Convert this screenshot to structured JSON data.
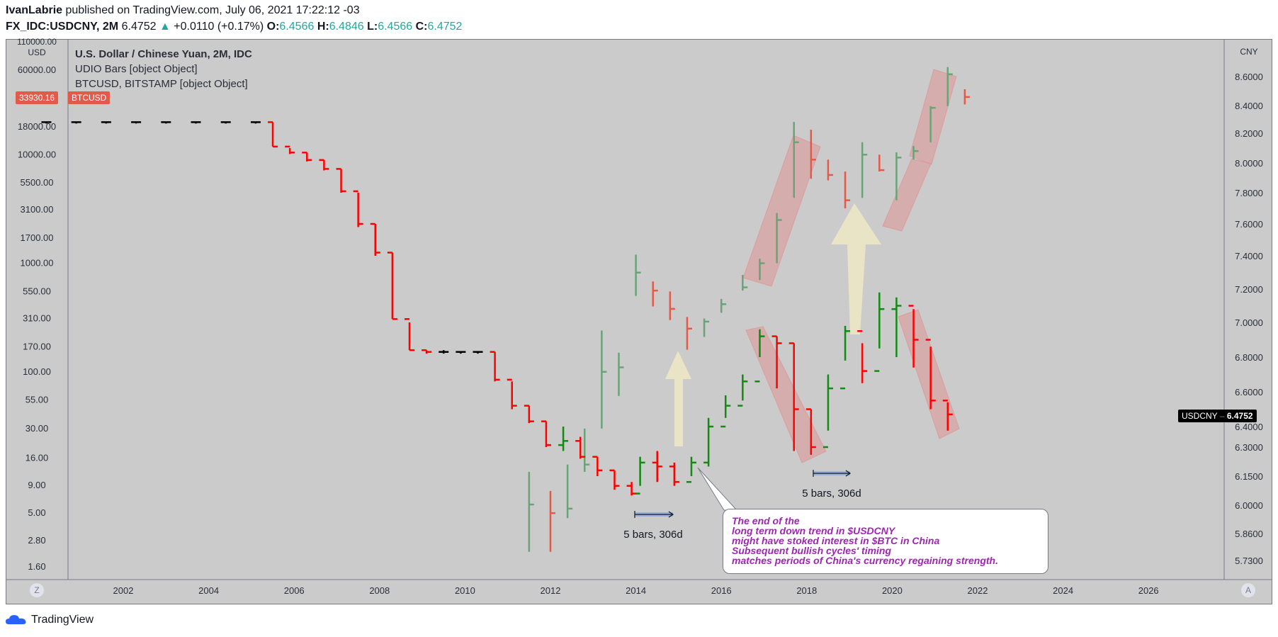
{
  "header": {
    "author": "IvanLabrie",
    "published": "published on TradingView.com, July 06, 2021 17:22:12 -03"
  },
  "ohlc": {
    "symbol": "FX_IDC:USDCNY, 2M",
    "last": "6.4752",
    "change": "+0.0110 (+0.17%)",
    "o_label": "O:",
    "o": "6.4566",
    "h_label": "H:",
    "h": "6.4846",
    "l_label": "L:",
    "l": "6.4566",
    "c_label": "C:",
    "c": "6.4752"
  },
  "legend": {
    "title": "U.S. Dollar / Chinese Yuan, 2M, IDC",
    "line1": "UDIO Bars [object Object]",
    "line2": "BTCUSD, BITSTAMP [object Object]"
  },
  "badges": {
    "btc_price": "33930.16",
    "btc_symbol": "BTCUSD",
    "usdcny_symbol": "USDCNY",
    "usdcny_price": "6.4752"
  },
  "colors": {
    "bg": "#cbcbcb",
    "bull": "#138a13",
    "bear": "#ff0000",
    "neutral": "#000000",
    "btc_bull": "#6aa378",
    "btc_bear": "#e25a4a",
    "channel": "#e58a8a",
    "arrow": "#efe9c6",
    "callout_text": "#9c27b0"
  },
  "annotations": {
    "range1": "5 bars, 306d",
    "range2": "5 bars, 306d",
    "callout_lines": [
      "The end of the",
      "long term down trend in $USDCNY",
      "might have stoked interest in $BTC in China",
      "Subsequent bullish cycles' timing",
      "matches periods of China's currency regaining strength."
    ]
  },
  "footer": {
    "brand": "TradingView",
    "z_button": "Z",
    "a_button": "A"
  },
  "chart_data": {
    "type": "bar",
    "left_axis": {
      "unit": "USD",
      "scale": "log",
      "ticks": [
        "110000.00",
        "60000.00",
        "18000.00",
        "10000.00",
        "5500.00",
        "3100.00",
        "1700.00",
        "1000.00",
        "550.00",
        "310.00",
        "170.00",
        "100.00",
        "55.00",
        "30.00",
        "16.00",
        "9.00",
        "5.00",
        "2.80",
        "1.60"
      ]
    },
    "right_axis": {
      "unit": "CNY",
      "ticks": [
        "8.6000",
        "8.4000",
        "8.2000",
        "8.0000",
        "7.8000",
        "7.6000",
        "7.4000",
        "7.2000",
        "7.0000",
        "6.8000",
        "6.6000",
        "6.4000",
        "6.3000",
        "6.1500",
        "6.0000",
        "5.8600",
        "5.7300"
      ]
    },
    "x_axis": {
      "ticks": [
        "2002",
        "2004",
        "2006",
        "2008",
        "2010",
        "2012",
        "2014",
        "2016",
        "2018",
        "2020",
        "2022",
        "2024",
        "2026"
      ]
    },
    "series": [
      {
        "name": "USDCNY",
        "note": "2M bars, values approximated: [year, high, low, close]",
        "bars": [
          [
            2000.2,
            8.28,
            8.27,
            8.28
          ],
          [
            2000.9,
            8.28,
            8.27,
            8.28
          ],
          [
            2001.6,
            8.28,
            8.27,
            8.28
          ],
          [
            2002.3,
            8.28,
            8.27,
            8.28
          ],
          [
            2003.0,
            8.28,
            8.27,
            8.28
          ],
          [
            2003.7,
            8.28,
            8.27,
            8.28
          ],
          [
            2004.4,
            8.28,
            8.27,
            8.28
          ],
          [
            2005.1,
            8.28,
            8.27,
            8.28
          ],
          [
            2005.5,
            8.28,
            8.11,
            8.11
          ],
          [
            2005.9,
            8.1,
            8.06,
            8.07
          ],
          [
            2006.3,
            8.07,
            8.01,
            8.02
          ],
          [
            2006.7,
            8.02,
            7.95,
            7.96
          ],
          [
            2007.1,
            7.96,
            7.8,
            7.81
          ],
          [
            2007.5,
            7.8,
            7.58,
            7.6
          ],
          [
            2007.9,
            7.6,
            7.4,
            7.42
          ],
          [
            2008.3,
            7.42,
            7.02,
            7.02
          ],
          [
            2008.7,
            7.0,
            6.84,
            6.84
          ],
          [
            2009.1,
            6.84,
            6.82,
            6.83
          ],
          [
            2009.5,
            6.84,
            6.82,
            6.83
          ],
          [
            2009.9,
            6.83,
            6.82,
            6.83
          ],
          [
            2010.3,
            6.83,
            6.82,
            6.83
          ],
          [
            2010.7,
            6.83,
            6.66,
            6.67
          ],
          [
            2011.1,
            6.66,
            6.5,
            6.52
          ],
          [
            2011.5,
            6.52,
            6.42,
            6.43
          ],
          [
            2011.9,
            6.43,
            6.3,
            6.31
          ],
          [
            2012.3,
            6.4,
            6.28,
            6.33
          ],
          [
            2012.7,
            6.35,
            6.24,
            6.25
          ],
          [
            2013.1,
            6.25,
            6.15,
            6.18
          ],
          [
            2013.5,
            6.18,
            6.08,
            6.1
          ],
          [
            2013.9,
            6.12,
            6.05,
            6.06
          ],
          [
            2014.1,
            6.25,
            6.1,
            6.22
          ],
          [
            2014.5,
            6.28,
            6.12,
            6.2
          ],
          [
            2014.9,
            6.22,
            6.1,
            6.12
          ],
          [
            2015.3,
            6.25,
            6.15,
            6.22
          ],
          [
            2015.7,
            6.45,
            6.2,
            6.4
          ],
          [
            2016.1,
            6.58,
            6.45,
            6.52
          ],
          [
            2016.5,
            6.7,
            6.55,
            6.66
          ],
          [
            2016.9,
            6.96,
            6.8,
            6.92
          ],
          [
            2017.3,
            6.92,
            6.62,
            6.88
          ],
          [
            2017.7,
            6.88,
            6.28,
            6.5
          ],
          [
            2018.1,
            6.5,
            6.26,
            6.3
          ],
          [
            2018.5,
            6.7,
            6.38,
            6.62
          ],
          [
            2018.9,
            6.98,
            6.78,
            6.95
          ],
          [
            2019.3,
            6.88,
            6.65,
            6.72
          ],
          [
            2019.7,
            7.18,
            6.85,
            7.08
          ],
          [
            2020.1,
            7.15,
            6.8,
            7.1
          ],
          [
            2020.5,
            7.08,
            6.74,
            6.9
          ],
          [
            2020.9,
            6.86,
            6.5,
            6.55
          ],
          [
            2021.3,
            6.54,
            6.38,
            6.47
          ]
        ]
      },
      {
        "name": "BTCUSD",
        "note": "2M bars, values approximated: [year, high, low, close] in USD",
        "bars": [
          [
            2011.5,
            12,
            2.2,
            6
          ],
          [
            2012.0,
            8,
            2.2,
            5
          ],
          [
            2012.4,
            14,
            4.5,
            5.5
          ],
          [
            2012.8,
            30,
            12,
            14
          ],
          [
            2013.2,
            240,
            30,
            100
          ],
          [
            2013.6,
            150,
            60,
            110
          ],
          [
            2014.0,
            1200,
            500,
            820
          ],
          [
            2014.4,
            680,
            400,
            560
          ],
          [
            2014.8,
            550,
            300,
            380
          ],
          [
            2015.2,
            320,
            160,
            250
          ],
          [
            2015.6,
            310,
            210,
            290
          ],
          [
            2016.0,
            470,
            350,
            420
          ],
          [
            2016.5,
            780,
            560,
            600
          ],
          [
            2016.9,
            1100,
            700,
            1000
          ],
          [
            2017.3,
            2900,
            1000,
            2500
          ],
          [
            2017.7,
            20000,
            4000,
            13000
          ],
          [
            2018.1,
            17000,
            6000,
            9000
          ],
          [
            2018.5,
            9000,
            5800,
            6500
          ],
          [
            2018.9,
            7000,
            3200,
            3800
          ],
          [
            2019.3,
            13000,
            4000,
            10000
          ],
          [
            2019.7,
            10000,
            7000,
            7200
          ],
          [
            2020.1,
            10500,
            3800,
            9400
          ],
          [
            2020.5,
            12000,
            9000,
            10800
          ],
          [
            2020.9,
            28000,
            13000,
            27000
          ],
          [
            2021.3,
            64000,
            28000,
            55000
          ],
          [
            2021.7,
            40000,
            29000,
            33930
          ]
        ]
      }
    ]
  }
}
